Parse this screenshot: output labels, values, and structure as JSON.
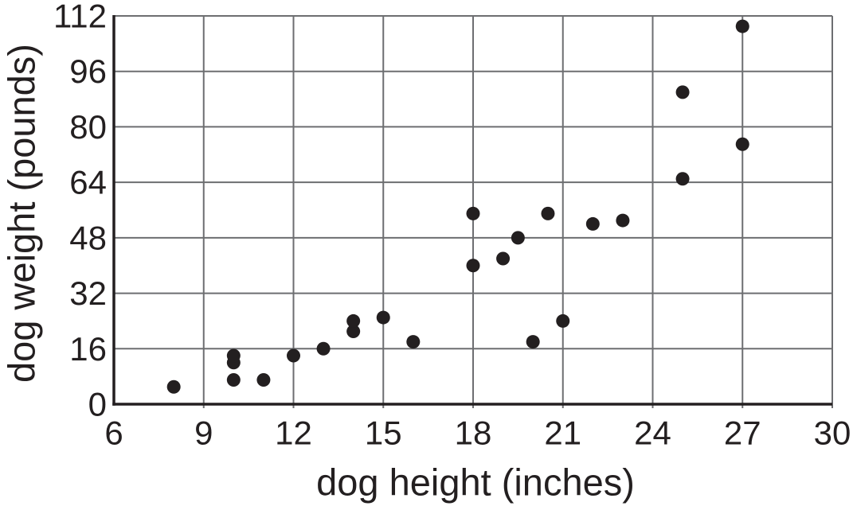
{
  "chart_data": {
    "type": "scatter",
    "title": "",
    "xlabel": "dog height (inches)",
    "ylabel": "dog weight (pounds)",
    "xlim": [
      6,
      30
    ],
    "ylim": [
      0,
      112
    ],
    "xticks": [
      6,
      9,
      12,
      15,
      18,
      21,
      24,
      27,
      30
    ],
    "yticks": [
      0,
      16,
      32,
      48,
      64,
      80,
      96,
      112
    ],
    "grid": true,
    "legend": "none",
    "points": [
      {
        "height": 8,
        "weight": 5
      },
      {
        "height": 10,
        "weight": 7
      },
      {
        "height": 10,
        "weight": 12
      },
      {
        "height": 10,
        "weight": 14
      },
      {
        "height": 11,
        "weight": 7
      },
      {
        "height": 12,
        "weight": 14
      },
      {
        "height": 13,
        "weight": 16
      },
      {
        "height": 14,
        "weight": 21
      },
      {
        "height": 14,
        "weight": 24
      },
      {
        "height": 15,
        "weight": 25
      },
      {
        "height": 16,
        "weight": 18
      },
      {
        "height": 18,
        "weight": 40
      },
      {
        "height": 18,
        "weight": 55
      },
      {
        "height": 19,
        "weight": 42
      },
      {
        "height": 19.5,
        "weight": 48
      },
      {
        "height": 20,
        "weight": 18
      },
      {
        "height": 20.5,
        "weight": 55
      },
      {
        "height": 21,
        "weight": 24
      },
      {
        "height": 22,
        "weight": 52
      },
      {
        "height": 23,
        "weight": 53
      },
      {
        "height": 25,
        "weight": 65
      },
      {
        "height": 25,
        "weight": 90
      },
      {
        "height": 27,
        "weight": 75
      },
      {
        "height": 27,
        "weight": 109
      }
    ],
    "colors": {
      "dot": "#231f20",
      "axis": "#231f20",
      "grid": "#6d6e71",
      "text": "#231f20",
      "background": "#ffffff"
    }
  }
}
